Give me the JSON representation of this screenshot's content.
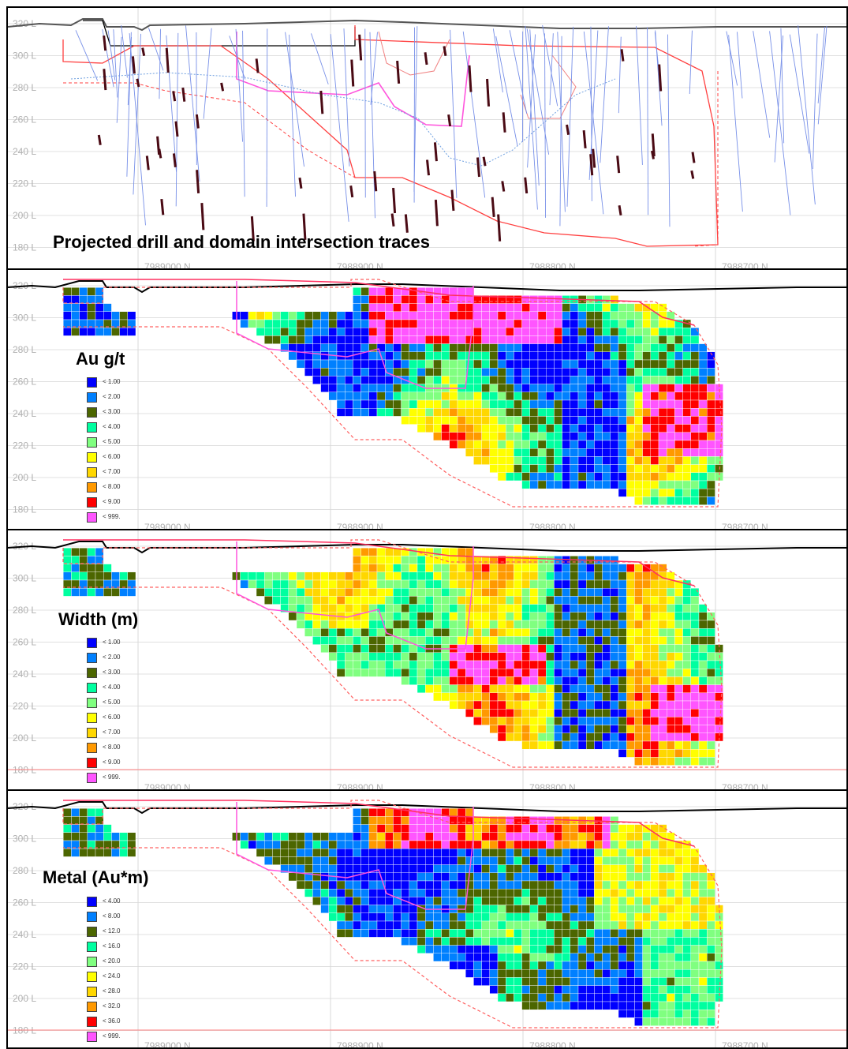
{
  "palette": [
    "#0000ff",
    "#0080ff",
    "#4c6600",
    "#00ffa0",
    "#80ff80",
    "#ffff00",
    "#ffd700",
    "#ff9900",
    "#ff0000",
    "#ff55ff"
  ],
  "panels": [
    {
      "id": "drill-traces",
      "title": "Projected drill and domain intersection traces",
      "rl_labels": [
        "320 L",
        "300 L",
        "280 L",
        "260 L",
        "240 L",
        "220 L",
        "200 L",
        "180 L"
      ],
      "northings": [
        "7989000 N",
        "7988900 N",
        "7988800 N",
        "7988700 N"
      ]
    },
    {
      "id": "au-grade",
      "title": "Au g/t",
      "rl_labels": [
        "320 L",
        "300 L",
        "280 L",
        "260 L",
        "240 L",
        "220 L",
        "200 L",
        "180 L"
      ],
      "northings": [
        "7989000 N",
        "7988900 N",
        "7988800 N",
        "7988700 N"
      ],
      "legend": [
        "< 1.00",
        "< 2.00",
        "< 3.00",
        "< 4.00",
        "< 5.00",
        "< 6.00",
        "< 7.00",
        "< 8.00",
        "< 9.00",
        "< 999."
      ]
    },
    {
      "id": "width",
      "title": "Width (m)",
      "rl_labels": [
        "320 L",
        "300 L",
        "280 L",
        "260 L",
        "240 L",
        "220 L",
        "200 L",
        "180 L"
      ],
      "northings": [
        "7989000 N",
        "7988900 N",
        "7988800 N",
        "7988700 N"
      ],
      "legend": [
        "< 1.00",
        "< 2.00",
        "< 3.00",
        "< 4.00",
        "< 5.00",
        "< 6.00",
        "< 7.00",
        "< 8.00",
        "< 9.00",
        "< 999."
      ]
    },
    {
      "id": "metal",
      "title": "Metal (Au*m)",
      "rl_labels": [
        "320 L",
        "300 L",
        "280 L",
        "260 L",
        "240 L",
        "220 L",
        "200 L",
        "180 L"
      ],
      "northings": [
        "7989000 N",
        "7988900 N",
        "7988800 N",
        "7988700 N"
      ],
      "legend": [
        "< 4.00",
        "< 8.00",
        "< 12.0",
        "< 16.0",
        "< 20.0",
        "< 24.0",
        "< 28.0",
        "< 32.0",
        "< 36.0",
        "< 999."
      ]
    }
  ]
}
